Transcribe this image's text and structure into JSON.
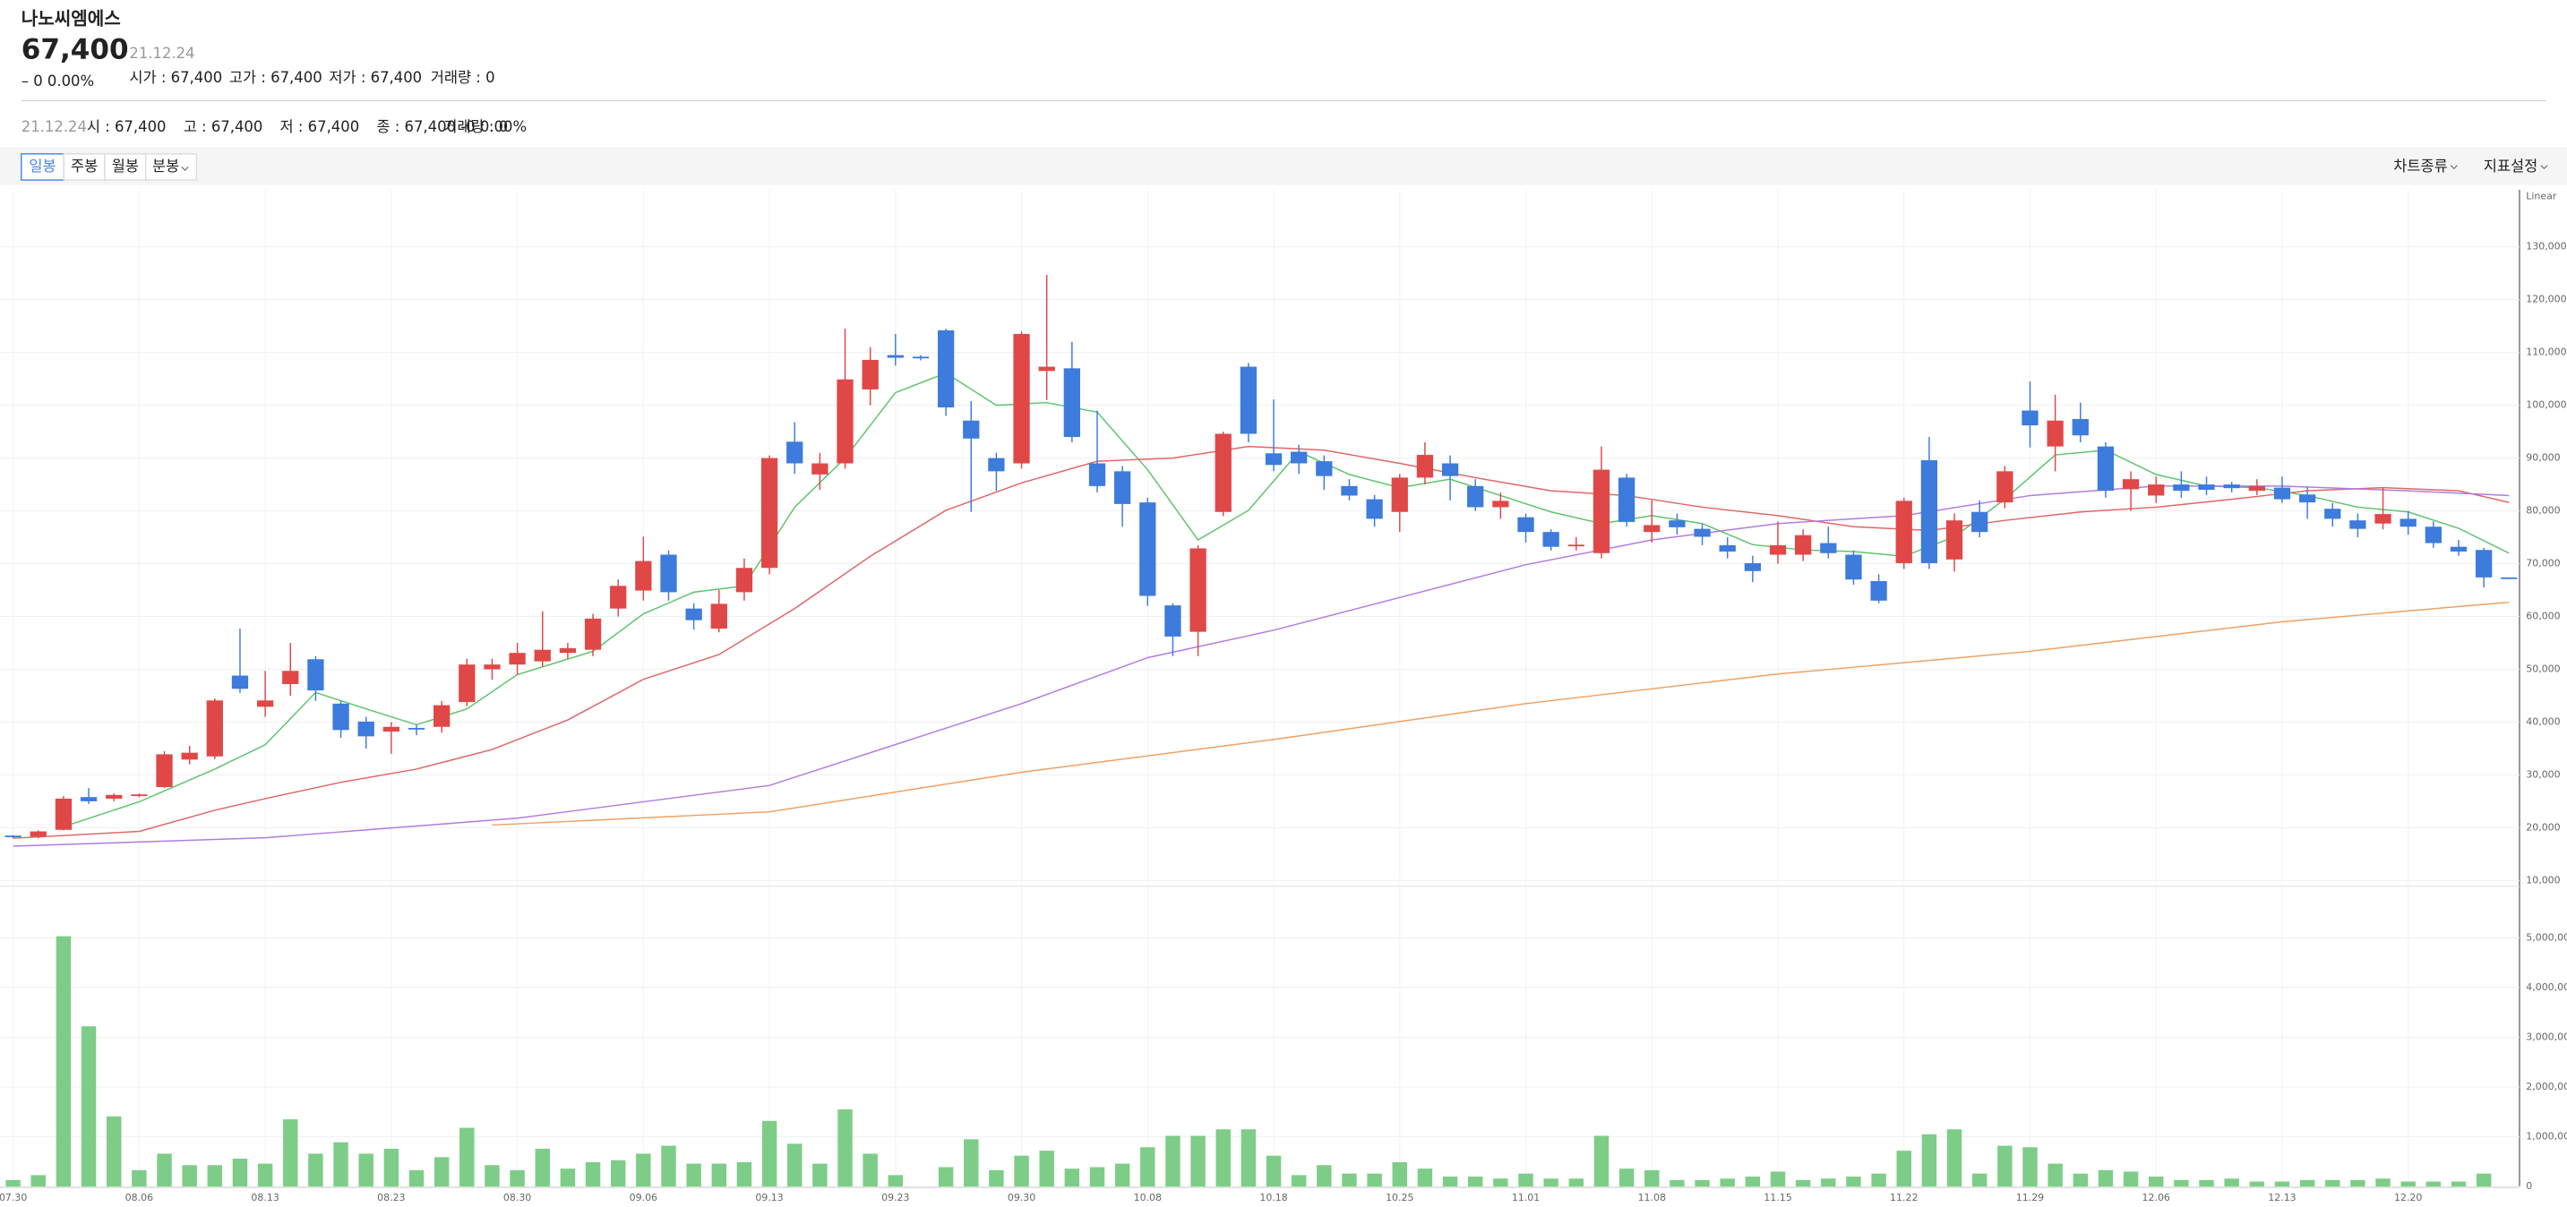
{
  "header": {
    "name": "나노씨엠에스",
    "price": "67,400",
    "date": "21.12.24",
    "change": "– 0 0.00%",
    "stats": [
      "시가 : 67,400",
      "고가 : 67,400",
      "저가 : 67,400",
      "거래량 : 0"
    ]
  },
  "info_row": [
    "21.12.24",
    "시 : 67,400",
    "고 : 67,400",
    "저 : 67,400",
    "종 : 67,400 -0 0.00%",
    "거래량 : 0"
  ],
  "toolbar": {
    "periods": [
      "일봉",
      "주봉",
      "월봉",
      "분봉"
    ],
    "right": [
      "차트종류",
      "지표설정"
    ]
  },
  "chart_data": {
    "type": "candlestick",
    "scale_label": "Linear",
    "categories": [
      "07.30",
      null,
      null,
      null,
      null,
      "08.06",
      null,
      null,
      null,
      null,
      "08.13",
      null,
      null,
      null,
      null,
      "08.23",
      null,
      null,
      null,
      null,
      "08.30",
      null,
      null,
      null,
      null,
      "09.06",
      null,
      null,
      null,
      null,
      "09.13",
      null,
      null,
      null,
      null,
      "09.23",
      null,
      null,
      null,
      null,
      "09.30",
      null,
      null,
      null,
      null,
      "10.08",
      null,
      null,
      null,
      null,
      "10.18",
      null,
      null,
      null,
      null,
      "10.25",
      null,
      null,
      null,
      null,
      "11.01",
      null,
      null,
      null,
      null,
      "11.08",
      null,
      null,
      null,
      null,
      "11.15",
      null,
      null,
      null,
      null,
      "11.22",
      null,
      null,
      null,
      null,
      "11.29",
      null,
      null,
      null,
      null,
      "12.06",
      null,
      null,
      null,
      null,
      "12.13",
      null,
      null,
      null,
      null,
      "12.20",
      null,
      null,
      null,
      null
    ],
    "open": [
      18500,
      18300,
      19600,
      25800,
      25500,
      26000,
      27700,
      32900,
      33500,
      48800,
      42900,
      47200,
      51900,
      43500,
      40100,
      38200,
      38900,
      39100,
      43800,
      50000,
      50900,
      51500,
      53100,
      53700,
      61500,
      64900,
      71700,
      61500,
      57700,
      64600,
      69200,
      93100,
      86900,
      89000,
      103000,
      109500,
      109200,
      114200,
      97100,
      90000,
      89000,
      106500,
      107000,
      89000,
      87500,
      81600,
      62100,
      57100,
      79800,
      107300,
      90900,
      91200,
      89400,
      84700,
      82200,
      79800,
      86300,
      89000,
      84700,
      80700,
      78800,
      76000,
      73300,
      72000,
      86300,
      76000,
      78200,
      76600,
      73500,
      70100,
      71700,
      71700,
      73900,
      71700,
      66700,
      70100,
      89600,
      70800,
      79800,
      81600,
      99000,
      92200,
      97400,
      92200,
      84100,
      82900,
      85000,
      85000,
      85000,
      83800,
      84400,
      83100,
      80400,
      78200,
      77600,
      78500,
      77000,
      73200,
      72600,
      67400
    ],
    "high": [
      18600,
      19500,
      26000,
      27500,
      26500,
      26500,
      34500,
      35500,
      44500,
      57700,
      49700,
      55000,
      52500,
      44000,
      41000,
      40000,
      39500,
      44000,
      52000,
      52000,
      55000,
      61000,
      55000,
      60500,
      67000,
      75100,
      72500,
      62500,
      65000,
      71000,
      90500,
      96800,
      91000,
      114500,
      111000,
      113500,
      109500,
      114500,
      100800,
      91000,
      114000,
      124700,
      112000,
      99000,
      88500,
      82500,
      62500,
      73500,
      95000,
      108000,
      101100,
      92500,
      90500,
      86000,
      83000,
      87000,
      93000,
      90500,
      86000,
      83500,
      79500,
      76500,
      75000,
      92200,
      87000,
      82000,
      79500,
      77500,
      75000,
      71500,
      78000,
      76500,
      77000,
      72500,
      68000,
      82500,
      94000,
      79500,
      82000,
      88500,
      104500,
      102000,
      100500,
      93000,
      87500,
      86500,
      87500,
      86500,
      85500,
      86000,
      86500,
      84500,
      81500,
      79500,
      84400,
      80000,
      78000,
      74500,
      73000,
      67400
    ],
    "low": [
      18000,
      18000,
      19500,
      24500,
      25000,
      25800,
      27500,
      32000,
      33000,
      45500,
      41000,
      45000,
      44000,
      37000,
      35000,
      34000,
      37500,
      38000,
      43000,
      48000,
      49000,
      50500,
      52000,
      52500,
      60000,
      63000,
      63000,
      57500,
      57000,
      63000,
      68000,
      87000,
      84000,
      88000,
      100000,
      107500,
      108500,
      98000,
      79800,
      83800,
      88000,
      101000,
      93000,
      83500,
      77000,
      62000,
      52500,
      52500,
      79000,
      93000,
      87500,
      87000,
      84000,
      82000,
      77000,
      76000,
      85000,
      82000,
      80000,
      78500,
      74000,
      72500,
      72500,
      71000,
      77000,
      74000,
      75500,
      73500,
      71000,
      66500,
      70000,
      70500,
      71000,
      66000,
      62500,
      69000,
      69000,
      68500,
      75000,
      80500,
      92000,
      87500,
      93000,
      82500,
      80000,
      81500,
      82500,
      83000,
      83500,
      83000,
      81500,
      78500,
      77000,
      75000,
      76500,
      75500,
      73000,
      71500,
      65500,
      67400
    ],
    "close": [
      18200,
      19300,
      25500,
      25000,
      26200,
      26300,
      33900,
      34200,
      44100,
      46300,
      44100,
      49700,
      46000,
      38500,
      37300,
      39100,
      38600,
      43200,
      50900,
      50900,
      53100,
      53700,
      54000,
      59600,
      65800,
      70500,
      64600,
      59300,
      62400,
      69200,
      90000,
      89000,
      89000,
      104900,
      108600,
      109000,
      108900,
      99600,
      93700,
      87500,
      113500,
      107300,
      94000,
      84700,
      81300,
      63900,
      56200,
      72900,
      94600,
      94600,
      88700,
      89000,
      86600,
      82900,
      78500,
      86300,
      90600,
      86600,
      80700,
      81900,
      76000,
      73200,
      73600,
      87800,
      77900,
      77300,
      76900,
      75100,
      72300,
      68600,
      73500,
      75400,
      72000,
      67000,
      63000,
      81900,
      70100,
      78200,
      76000,
      87500,
      96200,
      97100,
      94300,
      83800,
      86000,
      85000,
      83800,
      84000,
      84300,
      84700,
      82200,
      81600,
      78500,
      76600,
      79400,
      77000,
      73900,
      72300,
      67400,
      67400
    ],
    "up_color": "#e04848",
    "down_color": "#3d7bdc",
    "ylim": [
      10000,
      140800
    ],
    "yticks": [
      {
        "value": 10000,
        "label": "10,000"
      },
      {
        "value": 20000,
        "label": "20,000"
      },
      {
        "value": 30000,
        "label": "30,000"
      },
      {
        "value": 40000,
        "label": "40,000"
      },
      {
        "value": 50000,
        "label": "50,000"
      },
      {
        "value": 60000,
        "label": "60,000"
      },
      {
        "value": 70000,
        "label": "70,000"
      },
      {
        "value": 80000,
        "label": "80,000"
      },
      {
        "value": 90000,
        "label": "90,000"
      },
      {
        "value": 100000,
        "label": "100,000"
      },
      {
        "value": 110000,
        "label": "110,000"
      },
      {
        "value": 120000,
        "label": "120,000"
      },
      {
        "value": 130000,
        "label": "130,000"
      }
    ],
    "grid": true,
    "moving_averages": [
      {
        "color": "#5cc46b",
        "x": [
          2,
          5,
          8,
          10,
          12,
          14,
          16,
          18,
          20,
          23,
          25,
          27,
          29,
          31,
          33,
          35,
          37,
          39,
          41,
          43,
          45,
          47,
          49,
          51,
          53,
          55,
          57,
          59,
          61,
          63,
          65,
          67,
          69,
          71,
          73,
          75,
          77,
          79,
          81,
          83,
          85,
          87,
          89,
          91,
          93,
          95,
          97,
          99
        ],
        "values": [
          20200,
          24900,
          31100,
          35700,
          45600,
          42500,
          39500,
          42500,
          49000,
          53400,
          60500,
          64600,
          65800,
          80700,
          90000,
          102400,
          106100,
          100000,
          100500,
          98700,
          87800,
          74500,
          80100,
          91200,
          86900,
          84400,
          86000,
          82900,
          79800,
          77600,
          79100,
          77600,
          73600,
          72600,
          72300,
          71400,
          75100,
          82200,
          90600,
          91500,
          86900,
          84700,
          84400,
          82900,
          80700,
          79800,
          76700,
          72000
        ]
      },
      {
        "color": "#e06666",
        "x": [
          0,
          5,
          8,
          10,
          13,
          16,
          19,
          22,
          25,
          28,
          31,
          34,
          37,
          40,
          43,
          46,
          49,
          52,
          55,
          58,
          61,
          64,
          67,
          70,
          73,
          76,
          79,
          82,
          85,
          88,
          91,
          94,
          97,
          99
        ],
        "values": [
          18000,
          19300,
          23300,
          25500,
          28600,
          31100,
          34800,
          40400,
          48100,
          52800,
          61500,
          71400,
          80100,
          85300,
          89400,
          90000,
          92200,
          91500,
          89000,
          86300,
          83800,
          82900,
          80700,
          79100,
          77000,
          76300,
          78200,
          79800,
          80700,
          82200,
          83800,
          84400,
          83800,
          81600
        ]
      },
      {
        "color": "#b07ce0",
        "x": [
          0,
          10,
          20,
          30,
          40,
          45,
          50,
          55,
          60,
          65,
          70,
          75,
          80,
          85,
          90,
          95,
          99
        ],
        "values": [
          16500,
          18100,
          21800,
          28000,
          43500,
          52200,
          57400,
          63600,
          69800,
          74500,
          77600,
          79100,
          82900,
          84700,
          84700,
          83800,
          82900
        ]
      },
      {
        "color": "#f0a060",
        "x": [
          19,
          30,
          40,
          50,
          60,
          70,
          80,
          90,
          99
        ],
        "values": [
          20500,
          23000,
          30500,
          36700,
          43500,
          49100,
          53400,
          59000,
          62700
        ]
      }
    ],
    "volume": {
      "color": "#7dcd88",
      "values": [
        130000,
        230000,
        5030000,
        3220000,
        1410000,
        330000,
        660000,
        430000,
        430000,
        560000,
        460000,
        1350000,
        660000,
        890000,
        660000,
        760000,
        330000,
        590000,
        1180000,
        430000,
        330000,
        760000,
        360000,
        490000,
        530000,
        660000,
        820000,
        460000,
        460000,
        490000,
        1320000,
        860000,
        460000,
        1550000,
        660000,
        230000,
        0,
        390000,
        950000,
        330000,
        620000,
        720000,
        360000,
        390000,
        460000,
        790000,
        1020000,
        1020000,
        1150000,
        1150000,
        620000,
        230000,
        430000,
        260000,
        260000,
        490000,
        360000,
        200000,
        200000,
        160000,
        260000,
        160000,
        160000,
        1020000,
        360000,
        330000,
        130000,
        130000,
        160000,
        200000,
        300000,
        130000,
        160000,
        200000,
        260000,
        720000,
        1050000,
        1150000,
        260000,
        820000,
        790000,
        460000,
        260000,
        330000,
        300000,
        200000,
        130000,
        130000,
        160000,
        100000,
        100000,
        130000,
        130000,
        130000,
        160000,
        100000,
        100000,
        100000,
        260000,
        0
      ],
      "ylim": [
        0,
        5920000
      ],
      "yticks": [
        0,
        {
          "value": 1000000,
          "label": "1,000,000"
        },
        {
          "value": 2000000,
          "label": "2,000,000"
        },
        {
          "value": 3000000,
          "label": "3,000,000"
        },
        {
          "value": 4000000,
          "label": "4,000,000"
        },
        {
          "value": 5000000,
          "label": "5,000,000"
        }
      ]
    }
  }
}
